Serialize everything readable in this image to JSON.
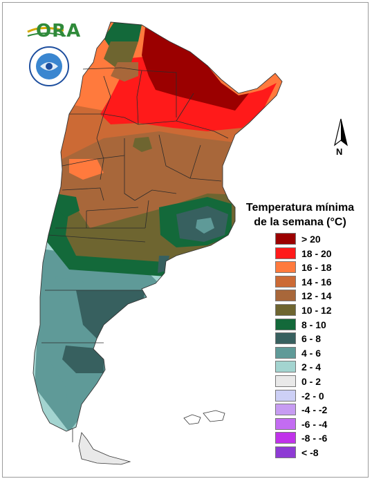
{
  "logo": {
    "text": "ORA",
    "seal_text": "SERVICIO METEOROLÓGICO NACIONAL ARGENTINA"
  },
  "north": {
    "label": "N"
  },
  "legend": {
    "title_line1": "Temperatura mínima",
    "title_line2": "de la semana (°C)",
    "items": [
      {
        "label": "> 20",
        "color": "#9b0000"
      },
      {
        "label": "18 - 20",
        "color": "#ff1a1a"
      },
      {
        "label": "16 - 18",
        "color": "#ff7a3d"
      },
      {
        "label": "14 - 16",
        "color": "#cc6a35"
      },
      {
        "label": "12 - 14",
        "color": "#a8673a"
      },
      {
        "label": "10 - 12",
        "color": "#6e6530"
      },
      {
        "label": "8 - 10",
        "color": "#13693a"
      },
      {
        "label": "6 - 8",
        "color": "#37605f"
      },
      {
        "label": "4 - 6",
        "color": "#5f9a98"
      },
      {
        "label": "2 - 4",
        "color": "#a3d4d0"
      },
      {
        "label": "0 - 2",
        "color": "#e9e9e9"
      },
      {
        "label": "-2 - 0",
        "color": "#cdd0f6"
      },
      {
        "label": "-4 - -2",
        "color": "#c79cf2"
      },
      {
        "label": "-6 - -4",
        "color": "#c36cf2"
      },
      {
        "label": "-8 - -6",
        "color": "#c033ea"
      },
      {
        "label": "< -8",
        "color": "#8e3bd4"
      }
    ]
  }
}
